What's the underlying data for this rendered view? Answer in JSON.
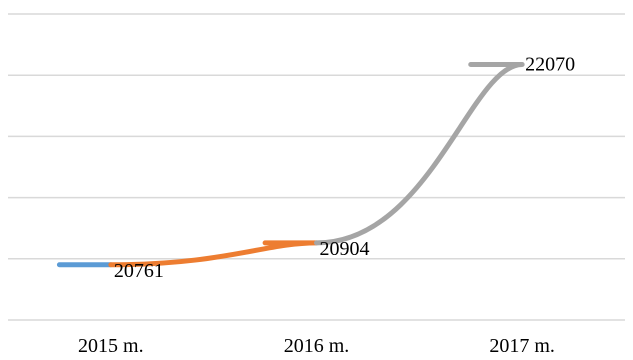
{
  "chart_data": {
    "type": "line",
    "categories": [
      "2015 m.",
      "2016 m.",
      "2017 m."
    ],
    "series": [
      {
        "values": [
          20761,
          null,
          null
        ],
        "color": "#5b9bd5"
      },
      {
        "values": [
          20761,
          20904,
          null
        ],
        "color": "#ed7d31"
      },
      {
        "values": [
          null,
          20904,
          22070
        ],
        "color": "#a5a5a5"
      }
    ],
    "data_labels": [
      "20761",
      "20904",
      "22070"
    ],
    "title": "",
    "xlabel": "",
    "ylabel": "",
    "ylim": [
      20400,
      22400
    ],
    "grid": true,
    "legend": "none"
  }
}
